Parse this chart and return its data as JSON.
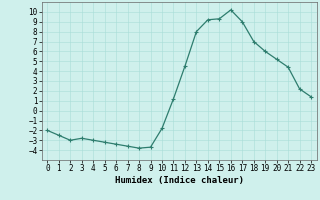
{
  "x": [
    0,
    1,
    2,
    3,
    4,
    5,
    6,
    7,
    8,
    9,
    10,
    11,
    12,
    13,
    14,
    15,
    16,
    17,
    18,
    19,
    20,
    21,
    22,
    23
  ],
  "y": [
    -2,
    -2.5,
    -3,
    -2.8,
    -3,
    -3.2,
    -3.4,
    -3.6,
    -3.8,
    -3.7,
    -1.8,
    1.2,
    4.5,
    8.0,
    9.2,
    9.3,
    10.2,
    9.0,
    7.0,
    6.0,
    5.2,
    4.4,
    2.2,
    1.4
  ],
  "line_color": "#2e7d6e",
  "marker": "+",
  "marker_size": 3,
  "bg_color": "#cff0ec",
  "grid_color": "#a8ddd8",
  "xlabel": "Humidex (Indice chaleur)",
  "xlim": [
    -0.5,
    23.5
  ],
  "ylim": [
    -5,
    11
  ],
  "yticks": [
    -4,
    -3,
    -2,
    -1,
    0,
    1,
    2,
    3,
    4,
    5,
    6,
    7,
    8,
    9,
    10
  ],
  "xticks": [
    0,
    1,
    2,
    3,
    4,
    5,
    6,
    7,
    8,
    9,
    10,
    11,
    12,
    13,
    14,
    15,
    16,
    17,
    18,
    19,
    20,
    21,
    22,
    23
  ],
  "linewidth": 0.9,
  "tick_fontsize": 5.5,
  "xlabel_fontsize": 6.5
}
